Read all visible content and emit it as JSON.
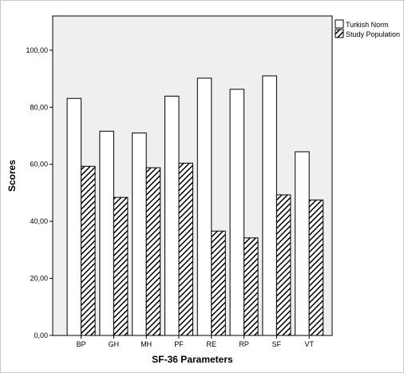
{
  "chart_data": {
    "type": "bar",
    "categories": [
      "BP",
      "GH",
      "MH",
      "PF",
      "RE",
      "RP",
      "SF",
      "VT"
    ],
    "series": [
      {
        "name": "Turkish Norm",
        "values": [
          83.1,
          71.6,
          71.0,
          83.9,
          90.2,
          86.3,
          91.0,
          64.4
        ],
        "pattern": "solid-white"
      },
      {
        "name": "Study Population",
        "values": [
          59.3,
          48.4,
          58.8,
          60.4,
          36.6,
          34.2,
          49.3,
          47.5
        ],
        "pattern": "diagonal-hatch"
      }
    ],
    "xlabel": "SF-36 Parameters",
    "ylabel": "Scores",
    "ylim": [
      0,
      112
    ],
    "yticks": [
      0,
      20,
      40,
      60,
      80,
      100
    ],
    "ytick_labels": [
      "0,00",
      "20,00",
      "40,00",
      "60,00",
      "80,00",
      "100,00"
    ],
    "grid": false,
    "legend_position": "top-right",
    "colors": {
      "plot_background": "#efefef",
      "bar_fill": "#ffffff",
      "hatch": "#000000",
      "outline": "#000000"
    }
  }
}
